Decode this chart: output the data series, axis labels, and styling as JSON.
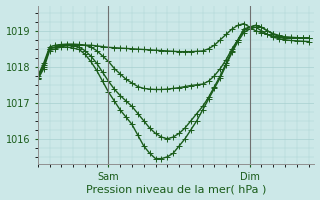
{
  "bg_color": "#cce8e8",
  "grid_color": "#a8d0d0",
  "line_color": "#1a5c1a",
  "marker": "+",
  "marker_size": 4,
  "linewidth": 1.0,
  "xlabel": "Pression niveau de la mer( hPa )",
  "xlabel_fontsize": 8,
  "yticks": [
    1016,
    1017,
    1018,
    1019
  ],
  "ylim": [
    1015.3,
    1019.7
  ],
  "xlim": [
    0,
    47
  ],
  "sam_x": 12,
  "dim_x": 36,
  "series": [
    [
      1017.7,
      1018.05,
      1018.5,
      1018.55,
      1018.58,
      1018.6,
      1018.6,
      1018.6,
      1018.6,
      1018.6,
      1018.58,
      1018.56,
      1018.54,
      1018.53,
      1018.52,
      1018.51,
      1018.5,
      1018.49,
      1018.48,
      1018.47,
      1018.46,
      1018.45,
      1018.44,
      1018.43,
      1018.42,
      1018.42,
      1018.42,
      1018.43,
      1018.44,
      1018.5,
      1018.6,
      1018.75,
      1018.9,
      1019.05,
      1019.15,
      1019.2,
      1019.1,
      1019.0,
      1018.95,
      1018.9,
      1018.85,
      1018.82,
      1018.8,
      1018.8,
      1018.8,
      1018.8,
      1018.8
    ],
    [
      1017.75,
      1018.1,
      1018.55,
      1018.6,
      1018.62,
      1018.63,
      1018.63,
      1018.62,
      1018.6,
      1018.55,
      1018.45,
      1018.3,
      1018.15,
      1017.95,
      1017.8,
      1017.65,
      1017.55,
      1017.45,
      1017.4,
      1017.38,
      1017.37,
      1017.37,
      1017.38,
      1017.4,
      1017.42,
      1017.45,
      1017.48,
      1017.5,
      1017.52,
      1017.6,
      1017.75,
      1017.95,
      1018.2,
      1018.5,
      1018.75,
      1019.0,
      1019.1,
      1019.15,
      1019.1,
      1019.0,
      1018.92,
      1018.87,
      1018.83,
      1018.82,
      1018.81,
      1018.8,
      1018.8
    ],
    [
      1017.7,
      1018.0,
      1018.5,
      1018.55,
      1018.6,
      1018.6,
      1018.58,
      1018.55,
      1018.45,
      1018.3,
      1018.1,
      1017.85,
      1017.6,
      1017.38,
      1017.2,
      1017.05,
      1016.9,
      1016.7,
      1016.5,
      1016.3,
      1016.15,
      1016.05,
      1016.0,
      1016.05,
      1016.15,
      1016.3,
      1016.5,
      1016.7,
      1016.9,
      1017.15,
      1017.45,
      1017.75,
      1018.1,
      1018.45,
      1018.75,
      1019.05,
      1019.1,
      1019.15,
      1019.1,
      1019.0,
      1018.9,
      1018.85,
      1018.82,
      1018.81,
      1018.8,
      1018.8,
      1018.8
    ],
    [
      1017.65,
      1017.95,
      1018.45,
      1018.5,
      1018.55,
      1018.55,
      1018.52,
      1018.48,
      1018.35,
      1018.15,
      1017.9,
      1017.6,
      1017.3,
      1017.05,
      1016.8,
      1016.6,
      1016.4,
      1016.1,
      1015.8,
      1015.6,
      1015.45,
      1015.45,
      1015.5,
      1015.6,
      1015.8,
      1016.0,
      1016.25,
      1016.5,
      1016.8,
      1017.1,
      1017.4,
      1017.7,
      1018.05,
      1018.4,
      1018.7,
      1018.95,
      1019.05,
      1019.1,
      1019.0,
      1018.9,
      1018.82,
      1018.78,
      1018.75,
      1018.73,
      1018.72,
      1018.71,
      1018.7
    ]
  ]
}
